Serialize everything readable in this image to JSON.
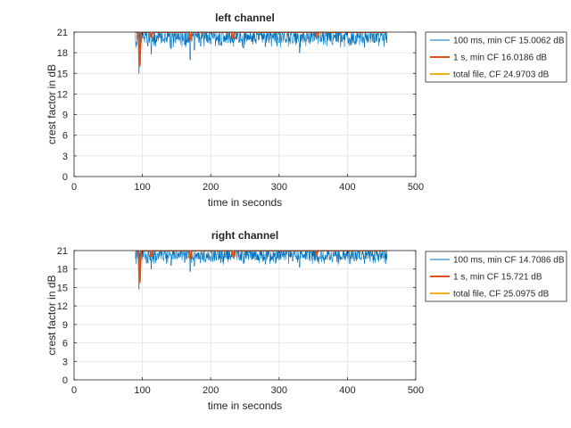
{
  "colors": {
    "blue": "#0072BD",
    "orange": "#D95319",
    "yellow": "#EDB120",
    "grid": "#dfdfdf",
    "axis": "#262626"
  },
  "chart_data": [
    {
      "type": "line",
      "title": "left channel",
      "xlabel": "time in seconds",
      "ylabel": "crest factor in dB",
      "xlim": [
        0,
        500
      ],
      "ylim": [
        0,
        21
      ],
      "xticks": [
        0,
        100,
        200,
        300,
        400,
        500
      ],
      "yticks": [
        0,
        3,
        6,
        9,
        12,
        15,
        18,
        21
      ],
      "grid": true,
      "legend_position": "outside-right-top",
      "series": [
        {
          "name": "100 ms, min CF 15.0062 dB",
          "color": "blue",
          "style": "thin",
          "x_range": [
            90,
            458
          ],
          "dips": [
            [
              95,
              15.0
            ],
            [
              97,
              16.5
            ],
            [
              108,
              19.0
            ],
            [
              113,
              17.8
            ],
            [
              121,
              19.6
            ],
            [
              130,
              19.8
            ],
            [
              142,
              18.6
            ],
            [
              150,
              20.0
            ],
            [
              162,
              19.2
            ],
            [
              170,
              17.0
            ],
            [
              176,
              18.4
            ],
            [
              185,
              19.0
            ],
            [
              200,
              19.3
            ],
            [
              215,
              19.1
            ],
            [
              233,
              19.8
            ],
            [
              248,
              18.7
            ],
            [
              265,
              19.6
            ],
            [
              280,
              18.9
            ],
            [
              300,
              19.5
            ],
            [
              320,
              19.4
            ],
            [
              330,
              18.0
            ],
            [
              345,
              19.3
            ],
            [
              360,
              19.7
            ],
            [
              378,
              19.2
            ],
            [
              392,
              19.6
            ],
            [
              410,
              19.4
            ],
            [
              425,
              18.8
            ],
            [
              440,
              19.5
            ],
            [
              452,
              19.8
            ]
          ]
        },
        {
          "name": "1 s, min CF 16.0186 dB",
          "color": "orange",
          "style": "thick",
          "dips": [
            [
              96,
              16.0
            ],
            [
              113,
              20.2
            ],
            [
              170,
              19.8
            ],
            [
              233,
              20.0
            ],
            [
              355,
              20.4
            ]
          ]
        },
        {
          "name": "total file, CF 24.9703 dB",
          "color": "yellow",
          "style": "thick",
          "value": 24.9703
        }
      ]
    },
    {
      "type": "line",
      "title": "right channel",
      "xlabel": "time in seconds",
      "ylabel": "crest factor in dB",
      "xlim": [
        0,
        500
      ],
      "ylim": [
        0,
        21
      ],
      "xticks": [
        0,
        100,
        200,
        300,
        400,
        500
      ],
      "yticks": [
        0,
        3,
        6,
        9,
        12,
        15,
        18,
        21
      ],
      "grid": true,
      "legend_position": "outside-right-top",
      "series": [
        {
          "name": "100 ms, min CF 14.7086 dB",
          "color": "blue",
          "style": "thin",
          "x_range": [
            90,
            458
          ],
          "dips": [
            [
              95,
              14.7
            ],
            [
              97,
              16.2
            ],
            [
              108,
              19.0
            ],
            [
              113,
              18.0
            ],
            [
              121,
              19.5
            ],
            [
              130,
              19.7
            ],
            [
              142,
              18.6
            ],
            [
              150,
              19.9
            ],
            [
              162,
              19.1
            ],
            [
              170,
              17.6
            ],
            [
              176,
              18.5
            ],
            [
              185,
              19.0
            ],
            [
              200,
              19.3
            ],
            [
              215,
              19.0
            ],
            [
              233,
              19.8
            ],
            [
              248,
              18.9
            ],
            [
              265,
              19.5
            ],
            [
              280,
              18.8
            ],
            [
              300,
              19.5
            ],
            [
              320,
              19.3
            ],
            [
              330,
              18.3
            ],
            [
              345,
              19.3
            ],
            [
              360,
              19.7
            ],
            [
              378,
              19.2
            ],
            [
              392,
              19.6
            ],
            [
              410,
              19.3
            ],
            [
              425,
              18.9
            ],
            [
              440,
              19.6
            ],
            [
              452,
              19.8
            ]
          ]
        },
        {
          "name": "1 s, min CF 15.721 dB",
          "color": "orange",
          "style": "thick",
          "dips": [
            [
              96,
              15.7
            ],
            [
              113,
              20.0
            ],
            [
              170,
              19.6
            ],
            [
              233,
              19.9
            ],
            [
              355,
              20.4
            ]
          ]
        },
        {
          "name": "total file, CF 25.0975 dB",
          "color": "yellow",
          "style": "thick",
          "value": 25.0975
        }
      ]
    }
  ]
}
